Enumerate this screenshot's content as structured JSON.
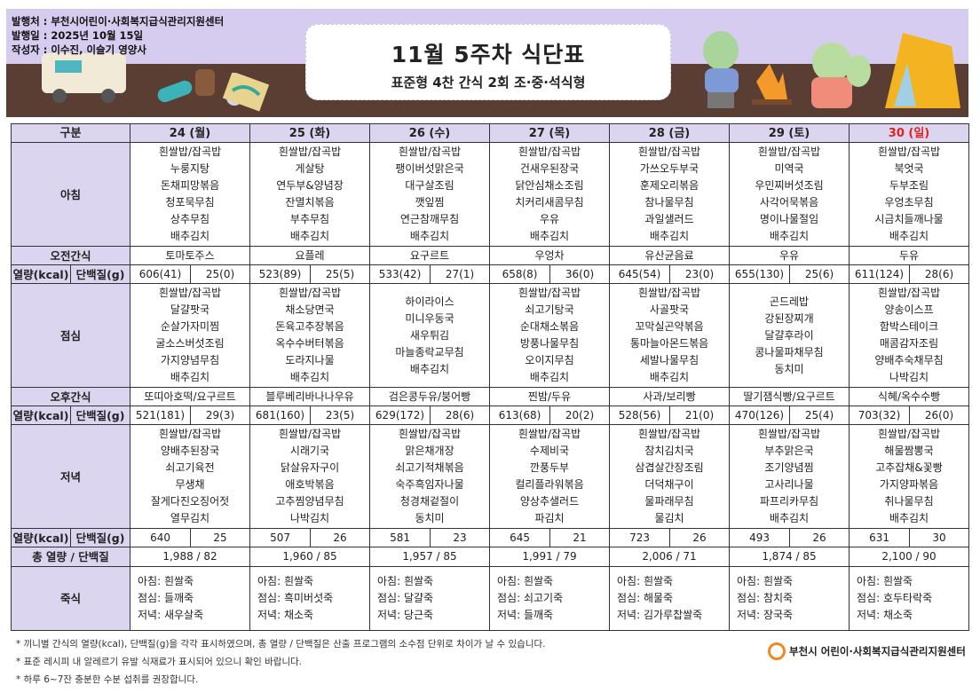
{
  "header": {
    "publisher": "발행처 : 부천시어린이·사회복지급식관리지원센터",
    "issue_date": "발행일 : 2025년 10월 15일",
    "author": "작성자 : 이수진, 이슬기 영양사",
    "title": "11월 5주차 식단표",
    "subtitle": "표준형 4찬 간식 2회 조·중·석식형"
  },
  "labels": {
    "category": "구분",
    "breakfast": "아침",
    "am_snack": "오전간식",
    "kcal": "열량(kcal)",
    "protein": "단백질(g)",
    "lunch": "점심",
    "pm_snack": "오후간식",
    "dinner": "저녁",
    "total": "총 열량 / 단백질",
    "porridge": "죽식"
  },
  "days": [
    {
      "date": "24 (월)",
      "breakfast": [
        "흰쌀밥/잡곡밥",
        "누룽지탕",
        "돈채피망볶음",
        "청포묵무침",
        "상추무침",
        "배추김치"
      ],
      "am_snack": "토마토주스",
      "b_kcal": "606(41)",
      "b_pro": "25(0)",
      "lunch": [
        "흰쌀밥/잡곡밥",
        "달걀팟국",
        "순살가자미찜",
        "굴소스버섯조림",
        "가지양념무침",
        "배추김치"
      ],
      "pm_snack": "또띠아호떡/요구르트",
      "l_kcal": "521(181)",
      "l_pro": "29(3)",
      "dinner": [
        "흰쌀밥/잡곡밥",
        "양배추된장국",
        "쇠고기육전",
        "무생채",
        "잘게다진오징어젓",
        "열무김치"
      ],
      "d_kcal": "640",
      "d_pro": "25",
      "total": "1,988 / 82",
      "porridge": [
        "아침: 흰쌀죽",
        "점심: 들깨죽",
        "저녁: 새우살죽"
      ]
    },
    {
      "date": "25 (화)",
      "breakfast": [
        "흰쌀밥/잡곡밥",
        "게살탕",
        "연두부&양념장",
        "잔멸치볶음",
        "부추무침",
        "배추김치"
      ],
      "am_snack": "요플레",
      "b_kcal": "523(89)",
      "b_pro": "25(5)",
      "lunch": [
        "흰쌀밥/잡곡밥",
        "채소당면국",
        "돈육고추장볶음",
        "옥수수버터볶음",
        "도라지나물",
        "배추김치"
      ],
      "pm_snack": "블루베리바나나우유",
      "l_kcal": "681(160)",
      "l_pro": "23(5)",
      "dinner": [
        "흰쌀밥/잡곡밥",
        "시래기국",
        "닭살유자구이",
        "애호박볶음",
        "고추찜양념무침",
        "나박김치"
      ],
      "d_kcal": "507",
      "d_pro": "26",
      "total": "1,960 / 85",
      "porridge": [
        "아침: 흰쌀죽",
        "점심: 흑미버섯죽",
        "저녁: 채소죽"
      ]
    },
    {
      "date": "26 (수)",
      "breakfast": [
        "흰쌀밥/잡곡밥",
        "팽이버섯맑은국",
        "대구살조림",
        "깻잎찜",
        "연근참깨무침",
        "배추김치"
      ],
      "am_snack": "요구르트",
      "b_kcal": "533(42)",
      "b_pro": "27(1)",
      "lunch": [
        "하이라이스",
        "미니우동국",
        "새우튀김",
        "마늘종락교무침",
        "배추김치"
      ],
      "pm_snack": "검은콩두유/붕어빵",
      "l_kcal": "629(172)",
      "l_pro": "28(6)",
      "dinner": [
        "흰쌀밥/잡곡밥",
        "맑은채개장",
        "쇠고기적채볶음",
        "숙주흑임자나물",
        "청경채겉절이",
        "동치미"
      ],
      "d_kcal": "581",
      "d_pro": "23",
      "total": "1,957 / 85",
      "porridge": [
        "아침: 흰쌀죽",
        "점심: 달걀죽",
        "저녁: 당근죽"
      ]
    },
    {
      "date": "27 (목)",
      "breakfast": [
        "흰쌀밥/잡곡밥",
        "건새우된장국",
        "닭안심채소조림",
        "치커리새콤무침",
        "우유",
        "배추김치"
      ],
      "am_snack": "우엉차",
      "b_kcal": "658(8)",
      "b_pro": "36(0)",
      "lunch": [
        "흰쌀밥/잡곡밥",
        "쇠고기탕국",
        "순대채소볶음",
        "방풍나물무침",
        "오이지무침",
        "배추김치"
      ],
      "pm_snack": "찐밤/두유",
      "l_kcal": "613(68)",
      "l_pro": "20(2)",
      "dinner": [
        "흰쌀밥/잡곡밥",
        "수제비국",
        "깐풍두부",
        "컬리플라워볶음",
        "양상추샐러드",
        "파김치"
      ],
      "d_kcal": "645",
      "d_pro": "21",
      "total": "1,991 / 79",
      "porridge": [
        "아침: 흰쌀죽",
        "점심: 쇠고기죽",
        "저녁: 들깨죽"
      ]
    },
    {
      "date": "28 (금)",
      "breakfast": [
        "흰쌀밥/잡곡밥",
        "가쓰오두부국",
        "훈제오리볶음",
        "참나물무침",
        "과일샐러드",
        "배추김치"
      ],
      "am_snack": "유산균음료",
      "b_kcal": "645(54)",
      "b_pro": "23(0)",
      "lunch": [
        "흰쌀밥/잡곡밥",
        "사골팟국",
        "꼬막실곤약볶음",
        "통마늘아몬드볶음",
        "세발나물무침",
        "배추김치"
      ],
      "pm_snack": "사과/보리빵",
      "l_kcal": "528(56)",
      "l_pro": "21(0)",
      "dinner": [
        "흰쌀밥/잡곡밥",
        "참치김치국",
        "삼겹살간장조림",
        "더덕채구이",
        "물파래무침",
        "물김치"
      ],
      "d_kcal": "723",
      "d_pro": "26",
      "total": "2,006 / 71",
      "porridge": [
        "아침: 흰쌀죽",
        "점심: 해물죽",
        "저녁: 김가루찹쌀죽"
      ]
    },
    {
      "date": "29 (토)",
      "breakfast": [
        "흰쌀밥/잡곡밥",
        "미역국",
        "우민찌버섯조림",
        "사각어묵볶음",
        "명이나물절임",
        "배추김치"
      ],
      "am_snack": "우유",
      "b_kcal": "655(130)",
      "b_pro": "25(6)",
      "lunch": [
        "곤드레밥",
        "강된장찌개",
        "달걀후라이",
        "콩나물파채무침",
        "동치미"
      ],
      "pm_snack": "딸기잼식빵/요구르트",
      "l_kcal": "470(126)",
      "l_pro": "25(4)",
      "dinner": [
        "흰쌀밥/잡곡밥",
        "부추맑은국",
        "조기양념찜",
        "고사리나물",
        "파프리카무침",
        "배추김치"
      ],
      "d_kcal": "493",
      "d_pro": "26",
      "total": "1,874 / 85",
      "porridge": [
        "아침: 흰쌀죽",
        "점심: 참치죽",
        "저녁: 장국죽"
      ]
    },
    {
      "date": "30 (일)",
      "holiday": true,
      "breakfast": [
        "흰쌀밥/잡곡밥",
        "북엇국",
        "두부조림",
        "우엉초무침",
        "시금치들깨나물",
        "배추김치"
      ],
      "am_snack": "두유",
      "b_kcal": "611(124)",
      "b_pro": "28(6)",
      "lunch": [
        "흰쌀밥/잡곡밥",
        "양송이스프",
        "함박스테이크",
        "매콤감자조림",
        "양배추숙채무침",
        "나박김치"
      ],
      "pm_snack": "식혜/옥수수빵",
      "l_kcal": "703(32)",
      "l_pro": "26(0)",
      "dinner": [
        "흰쌀밥/잡곡밥",
        "해물짬뽕국",
        "고추잡채&꽃빵",
        "가지양파볶음",
        "취나물무침",
        "배추김치"
      ],
      "d_kcal": "631",
      "d_pro": "30",
      "total": "2,100 / 90",
      "porridge": [
        "아침: 흰쌀죽",
        "점심: 호두타락죽",
        "저녁: 채소죽"
      ]
    }
  ],
  "footnotes": [
    "* 끼니별 간식의 열량(kcal), 단백질(g)을 각각 표시하였으며, 총 열량 / 단백질은 산출 프로그램의 소수점 단위로 차이가 날 수 있습니다.",
    "* 표준 레시피 내 알레르기 유발 식재료가 표시되어 있으니 확인 바랍니다.",
    "* 하루 6~7잔 충분한 수분 섭취를 권장합니다."
  ],
  "logo_text": "부천시 어린이·사회복지급식관리지원센터",
  "colors": {
    "header_bg": "#dcd5f0",
    "holiday": "#e02020",
    "banner_sky": "#d6ccef",
    "banner_ground": "#5b3e33",
    "logo": "#f08a1c"
  }
}
